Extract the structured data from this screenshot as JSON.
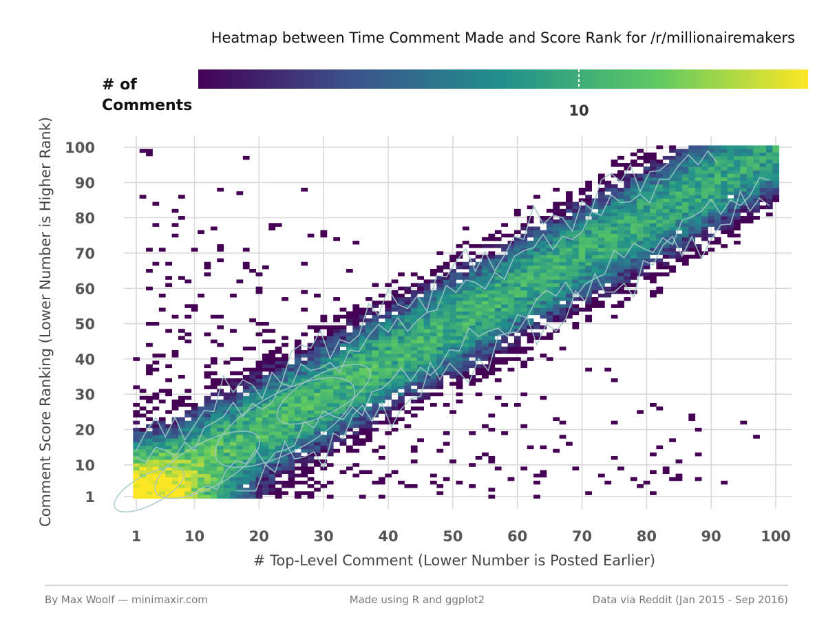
{
  "chart_data": {
    "type": "heatmap",
    "title": "Heatmap between Time Comment Made and Score Rank for /r/millionairemakers",
    "xlabel": "# Top-Level Comment (Lower Number is Posted Earlier)",
    "ylabel": "Comment Score Ranking (Lower Number is Higher Rank)",
    "x_ticks": [
      1,
      10,
      20,
      30,
      40,
      50,
      60,
      70,
      80,
      90,
      100
    ],
    "y_ticks": [
      1,
      10,
      20,
      30,
      40,
      50,
      60,
      70,
      80,
      90,
      100
    ],
    "xlim": [
      1,
      100
    ],
    "ylim": [
      1,
      100
    ],
    "grid": true,
    "legend": {
      "title_line1": "# of",
      "title_line2": "Comments",
      "position": "top",
      "tick_label": "10",
      "tick_value": 10,
      "scale": "log10",
      "min": 1,
      "max": 40
    },
    "colors": {
      "palette": [
        "#440154",
        "#3b528b",
        "#21908c",
        "#5dc963",
        "#fde725"
      ],
      "contour": "#9fc7c8",
      "grid": "#d9d9d9"
    },
    "density_model": {
      "diagonal_peak": 14,
      "origin_peak": 40,
      "diagonal_width": 7,
      "falloff_rank": 40
    },
    "captions": {
      "left": "By Max Woolf — minimaxir.com",
      "center": "Made using R and ggplot2",
      "right": "Data via Reddit (Jan 2015 - Sep 2016)"
    }
  }
}
